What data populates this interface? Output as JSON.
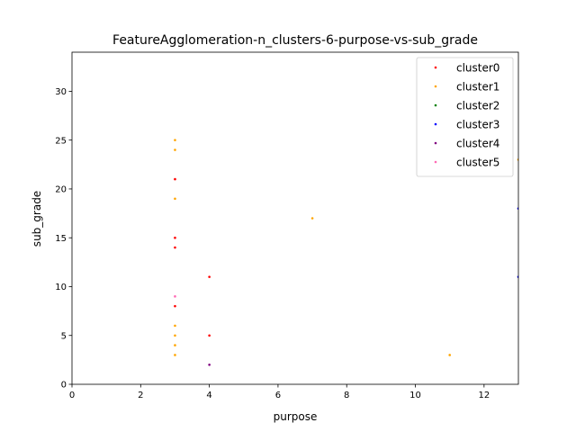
{
  "chart_data": {
    "type": "scatter",
    "title": "FeatureAgglomeration-n_clusters-6-purpose-vs-sub_grade",
    "xlabel": "purpose",
    "ylabel": "sub_grade",
    "xlim": [
      0,
      13
    ],
    "ylim": [
      0,
      34
    ],
    "xticks": [
      0,
      2,
      4,
      6,
      8,
      10,
      12
    ],
    "yticks": [
      0,
      5,
      10,
      15,
      20,
      25,
      30
    ],
    "grid": false,
    "legend_position": "top-right",
    "series": [
      {
        "name": "cluster0",
        "color": "#ff0000",
        "points": [
          [
            3,
            21
          ],
          [
            3,
            15
          ],
          [
            3,
            14
          ],
          [
            3,
            8
          ],
          [
            4,
            11
          ],
          [
            4,
            5
          ]
        ]
      },
      {
        "name": "cluster1",
        "color": "#ffa500",
        "points": [
          [
            3,
            25
          ],
          [
            3,
            24
          ],
          [
            3,
            19
          ],
          [
            3,
            6
          ],
          [
            3,
            5
          ],
          [
            3,
            4
          ],
          [
            3,
            3
          ],
          [
            7,
            17
          ],
          [
            11,
            3
          ],
          [
            13,
            23
          ]
        ]
      },
      {
        "name": "cluster2",
        "color": "#008000",
        "points": []
      },
      {
        "name": "cluster3",
        "color": "#0000ff",
        "points": [
          [
            13,
            18
          ],
          [
            13,
            11
          ]
        ]
      },
      {
        "name": "cluster4",
        "color": "#800080",
        "points": [
          [
            4,
            2
          ]
        ]
      },
      {
        "name": "cluster5",
        "color": "#ff69b4",
        "points": [
          [
            3,
            9
          ]
        ]
      }
    ]
  }
}
